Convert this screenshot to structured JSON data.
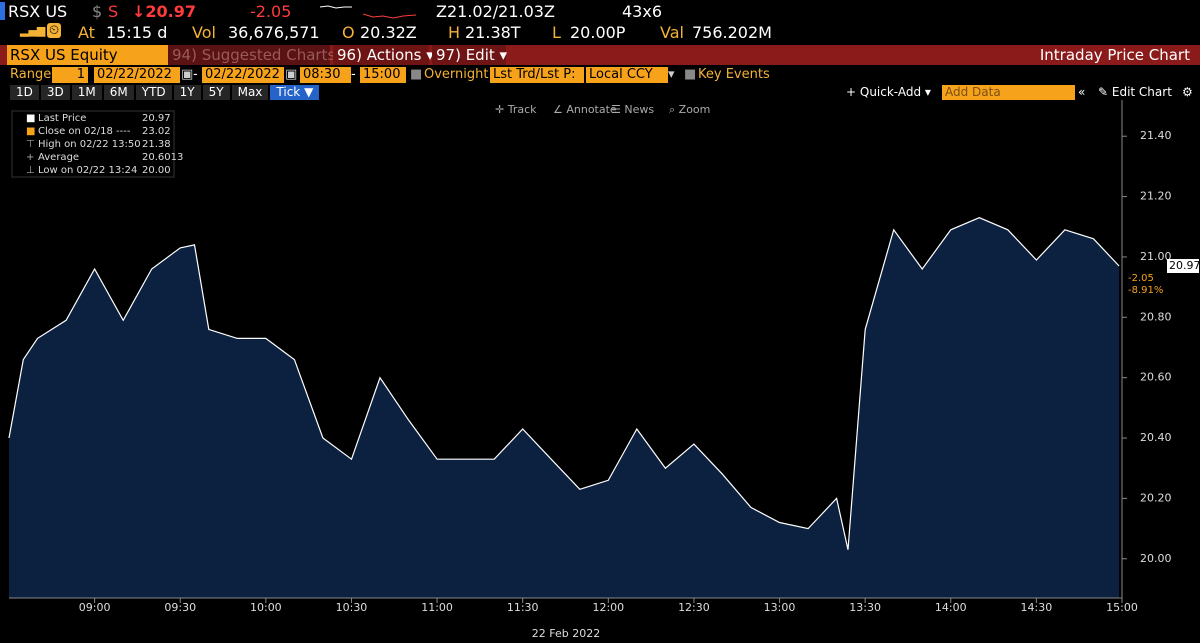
{
  "header": {
    "row1": {
      "ticker": "RSX US",
      "currency": "$",
      "flag": "S",
      "last": "↓20.97",
      "change": "-2.05",
      "bidask": "Z21.02/21.03Z",
      "size": "43x6"
    },
    "row2": {
      "at_label": "At",
      "time": "15:15 d",
      "vol_label": "Vol",
      "vol": "36,676,571",
      "open_label": "O",
      "open": "20.32Z",
      "high_label": "H",
      "high": "21.38T",
      "low_label": "L",
      "low": "20.00P",
      "val_label": "Val",
      "val": "756.202M"
    }
  },
  "toolbar": {
    "security": "RSX US Equity",
    "suggested": "94) Suggested Charts",
    "actions": "96) Actions ▾",
    "edit": "97) Edit ▾",
    "title": "Intraday Price Chart"
  },
  "range_bar": {
    "range_label": "Range",
    "range_value": "1",
    "start_date": "02/22/2022",
    "dash1": "-",
    "end_date": "02/22/2022",
    "start_time": "08:30",
    "dash2": "-",
    "end_time": "15:00",
    "overnight": "Overnight",
    "price_type": "Lst Trd/Lst P:",
    "currency": "Local CCY",
    "key_events": "Key Events"
  },
  "period_bar": {
    "periods": [
      "1D",
      "3D",
      "1M",
      "6M",
      "YTD",
      "1Y",
      "5Y",
      "Max",
      "Tick ▼"
    ],
    "quick_add": "+ Quick-Add ▾",
    "add_data": "Add Data",
    "collapse": "«",
    "edit_chart": "✎ Edit Chart",
    "settings": "⚙"
  },
  "chart_tools": [
    "✛ Track",
    "∠ Annotate",
    "☰ News",
    "⌕ Zoom"
  ],
  "legend": [
    {
      "label": "Last Price",
      "value": "20.97"
    },
    {
      "label": "Close on 02/18 ----",
      "value": "23.02"
    },
    {
      "label": "High on 02/22 13:50",
      "value": "21.38"
    },
    {
      "label": "Average",
      "value": "20.6013"
    },
    {
      "label": "Low on 02/22 13:24",
      "value": "20.00"
    }
  ],
  "chart_data": {
    "type": "area",
    "x_label": "22 Feb 2022",
    "x": [
      "08:30",
      "08:35",
      "08:40",
      "08:50",
      "09:00",
      "09:10",
      "09:20",
      "09:30",
      "09:35",
      "09:40",
      "09:50",
      "10:00",
      "10:10",
      "10:20",
      "10:30",
      "10:40",
      "10:50",
      "11:00",
      "11:10",
      "11:20",
      "11:30",
      "11:40",
      "11:50",
      "12:00",
      "12:10",
      "12:20",
      "12:30",
      "12:40",
      "12:50",
      "13:00",
      "13:10",
      "13:20",
      "13:24",
      "13:30",
      "13:40",
      "13:50",
      "14:00",
      "14:10",
      "14:20",
      "14:30",
      "14:40",
      "14:50",
      "14:59"
    ],
    "series": [
      {
        "name": "Last Price",
        "color": "#ffffff",
        "fill": "#0c2140",
        "values": [
          20.4,
          20.66,
          20.73,
          20.79,
          20.96,
          20.79,
          20.96,
          21.03,
          21.04,
          20.76,
          20.73,
          20.73,
          20.66,
          20.4,
          20.33,
          20.6,
          20.46,
          20.33,
          20.33,
          20.33,
          20.43,
          20.33,
          20.23,
          20.26,
          20.43,
          20.3,
          20.38,
          20.28,
          20.17,
          20.12,
          20.1,
          20.2,
          20.03,
          20.76,
          21.09,
          20.96,
          21.09,
          21.13,
          21.09,
          20.99,
          21.09,
          21.06,
          20.97
        ]
      }
    ],
    "xlim": [
      "08:30",
      "15:00"
    ],
    "xticks": [
      "09:00",
      "09:30",
      "10:00",
      "10:30",
      "11:00",
      "11:30",
      "12:00",
      "12:30",
      "13:00",
      "13:30",
      "14:00",
      "14:30",
      "15:00"
    ],
    "ylim": [
      19.87,
      21.52
    ],
    "yticks": [
      {
        "value": 20,
        "label": "20.00"
      },
      {
        "value": 20.2,
        "label": "20.20"
      },
      {
        "value": 20.4,
        "label": "20.40"
      },
      {
        "value": 20.6,
        "label": "20.60"
      },
      {
        "value": 20.8,
        "label": "20.80"
      },
      {
        "value": 21,
        "label": "21.00"
      },
      {
        "value": 21.2,
        "label": "21.20"
      },
      {
        "value": 21.4,
        "label": "21.40"
      }
    ],
    "last_marker": {
      "value": 20.97,
      "label": "20.97",
      "change": "-2.05",
      "change_pct": "-8.91%"
    }
  }
}
